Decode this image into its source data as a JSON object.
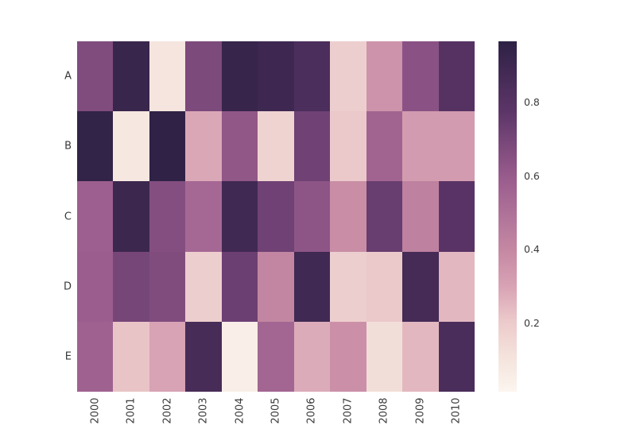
{
  "chart_data": {
    "type": "heatmap",
    "title": "",
    "xlabel": "",
    "ylabel": "",
    "rows": [
      "A",
      "B",
      "C",
      "D",
      "E"
    ],
    "columns": [
      "2000",
      "2001",
      "2002",
      "2003",
      "2004",
      "2005",
      "2006",
      "2007",
      "2008",
      "2009",
      "2010"
    ],
    "values": [
      [
        0.67,
        0.92,
        0.1,
        0.68,
        0.93,
        0.9,
        0.84,
        0.19,
        0.36,
        0.64,
        0.8
      ],
      [
        0.95,
        0.09,
        0.96,
        0.29,
        0.62,
        0.17,
        0.72,
        0.21,
        0.56,
        0.33,
        0.33
      ],
      [
        0.58,
        0.91,
        0.66,
        0.54,
        0.89,
        0.72,
        0.63,
        0.38,
        0.74,
        0.43,
        0.79
      ],
      [
        0.59,
        0.7,
        0.67,
        0.19,
        0.73,
        0.41,
        0.89,
        0.19,
        0.21,
        0.87,
        0.25
      ],
      [
        0.57,
        0.22,
        0.3,
        0.86,
        0.05,
        0.55,
        0.28,
        0.37,
        0.13,
        0.25,
        0.85
      ]
    ],
    "zmin": 0.014,
    "zmax": 0.966,
    "colorbar": {
      "position": "right",
      "tick_values": [
        0.8,
        0.6,
        0.4,
        0.2
      ],
      "tick_labels": [
        "0.8",
        "0.6",
        "0.4",
        "0.2"
      ]
    },
    "colorscale": [
      [
        0.0,
        "#fcf5ef"
      ],
      [
        0.1,
        "#f4e3dc"
      ],
      [
        0.2,
        "#eccacb"
      ],
      [
        0.3,
        "#d8a3b5"
      ],
      [
        0.4,
        "#c689a3"
      ],
      [
        0.5,
        "#b0749a"
      ],
      [
        0.6,
        "#9c5e8e"
      ],
      [
        0.7,
        "#7d4a7c"
      ],
      [
        0.8,
        "#5c3568"
      ],
      [
        0.9,
        "#452b56"
      ],
      [
        1.0,
        "#2e2145"
      ]
    ],
    "grid": false,
    "x_tick_rotation": -90
  },
  "colors": {
    "background": "#ffffff",
    "tick_text": "#3a3a3a"
  }
}
